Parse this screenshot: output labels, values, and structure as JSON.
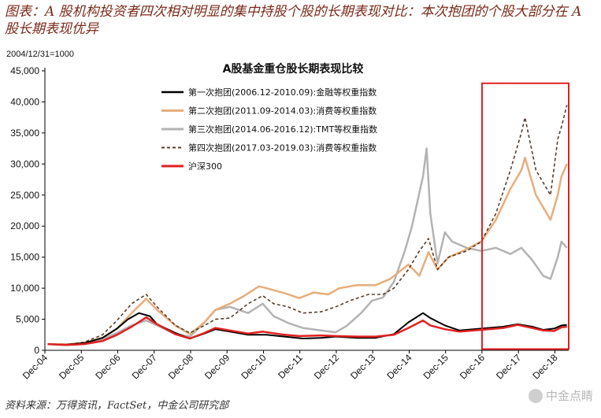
{
  "figure": {
    "title": "图表：A 股机构投资者四次相对明显的集中持股个股的长期表现对比：本次抱团的个股大部分在 A 股长期表现优异",
    "source": "资料来源：万得资讯，FactSet，中金公司研究部",
    "watermark": "中金点睛"
  },
  "chart_data": {
    "type": "line",
    "title": "A股基金重仓股长期表现比较",
    "base_note": "2004/12/31=1000",
    "x_tick_labels": [
      "Dec-04",
      "Dec-05",
      "Dec-06",
      "Dec-07",
      "Dec-08",
      "Dec-09",
      "Dec-10",
      "Dec-11",
      "Dec-12",
      "Dec-13",
      "Dec-14",
      "Dec-15",
      "Dec-16",
      "Dec-17",
      "Dec-18"
    ],
    "y_tick_labels": [
      "0",
      "5,000",
      "10,000",
      "15,000",
      "20,000",
      "25,000",
      "30,000",
      "35,000",
      "40,000",
      "45,000"
    ],
    "ylim": [
      0,
      45000
    ],
    "xlim": [
      2004.92,
      2019.3
    ],
    "grid": false,
    "legend_position": "top-center",
    "highlight_box": {
      "x_range": [
        2016.92,
        2019.3
      ],
      "y_range": [
        200,
        43000
      ],
      "color": "#e02020"
    },
    "series": [
      {
        "name": "第一次抱团(2006.12-2010.09):金融等权重指数",
        "color": "#000000",
        "style": "solid",
        "width": 2,
        "points": [
          [
            2005.0,
            1000
          ],
          [
            2005.5,
            900
          ],
          [
            2006.0,
            1150
          ],
          [
            2006.5,
            2000
          ],
          [
            2006.9,
            3500
          ],
          [
            2007.2,
            5000
          ],
          [
            2007.5,
            6000
          ],
          [
            2007.8,
            5500
          ],
          [
            2008.0,
            4200
          ],
          [
            2008.5,
            2800
          ],
          [
            2008.9,
            1900
          ],
          [
            2009.3,
            2700
          ],
          [
            2009.6,
            3400
          ],
          [
            2010.0,
            3000
          ],
          [
            2010.5,
            2500
          ],
          [
            2011.0,
            2500
          ],
          [
            2011.5,
            2200
          ],
          [
            2012.0,
            1900
          ],
          [
            2012.5,
            2000
          ],
          [
            2012.9,
            2200
          ],
          [
            2013.5,
            2000
          ],
          [
            2014.0,
            2000
          ],
          [
            2014.5,
            2600
          ],
          [
            2014.9,
            4500
          ],
          [
            2015.3,
            6000
          ],
          [
            2015.5,
            5200
          ],
          [
            2015.9,
            4000
          ],
          [
            2016.3,
            3200
          ],
          [
            2016.9,
            3500
          ],
          [
            2017.5,
            3800
          ],
          [
            2017.9,
            4200
          ],
          [
            2018.3,
            3800
          ],
          [
            2018.6,
            3300
          ],
          [
            2018.9,
            3500
          ],
          [
            2019.1,
            4000
          ],
          [
            2019.25,
            4100
          ]
        ]
      },
      {
        "name": "第二次抱团(2011.09-2014.03):消费等权重指数",
        "color": "#e8ad7a",
        "style": "solid",
        "width": 2.5,
        "points": [
          [
            2005.0,
            1000
          ],
          [
            2005.5,
            950
          ],
          [
            2006.0,
            1200
          ],
          [
            2006.5,
            2000
          ],
          [
            2006.9,
            3500
          ],
          [
            2007.3,
            6000
          ],
          [
            2007.7,
            8300
          ],
          [
            2008.0,
            6500
          ],
          [
            2008.5,
            4000
          ],
          [
            2008.9,
            2600
          ],
          [
            2009.3,
            4500
          ],
          [
            2009.6,
            6500
          ],
          [
            2010.0,
            7500
          ],
          [
            2010.4,
            8800
          ],
          [
            2010.8,
            10300
          ],
          [
            2011.0,
            10000
          ],
          [
            2011.5,
            9200
          ],
          [
            2011.9,
            8400
          ],
          [
            2012.3,
            9300
          ],
          [
            2012.7,
            9000
          ],
          [
            2013.0,
            10000
          ],
          [
            2013.5,
            10500
          ],
          [
            2014.0,
            10500
          ],
          [
            2014.4,
            11500
          ],
          [
            2014.9,
            13800
          ],
          [
            2015.2,
            12000
          ],
          [
            2015.45,
            15800
          ],
          [
            2015.7,
            13000
          ],
          [
            2016.0,
            15000
          ],
          [
            2016.4,
            16000
          ],
          [
            2016.9,
            17500
          ],
          [
            2017.3,
            21000
          ],
          [
            2017.7,
            26000
          ],
          [
            2018.0,
            29000
          ],
          [
            2018.1,
            31000
          ],
          [
            2018.4,
            25000
          ],
          [
            2018.8,
            21000
          ],
          [
            2019.0,
            25000
          ],
          [
            2019.1,
            28000
          ],
          [
            2019.25,
            30000
          ]
        ]
      },
      {
        "name": "第三次抱团(2014.06-2016.12):TMT等权重指数",
        "color": "#b3b3b3",
        "style": "solid",
        "width": 2.5,
        "points": [
          [
            2005.0,
            1000
          ],
          [
            2005.5,
            850
          ],
          [
            2006.0,
            1000
          ],
          [
            2006.5,
            1800
          ],
          [
            2006.9,
            2800
          ],
          [
            2007.3,
            4000
          ],
          [
            2007.7,
            4800
          ],
          [
            2008.0,
            4000
          ],
          [
            2008.5,
            2600
          ],
          [
            2008.9,
            2200
          ],
          [
            2009.3,
            4500
          ],
          [
            2009.6,
            6500
          ],
          [
            2010.0,
            7000
          ],
          [
            2010.5,
            6000
          ],
          [
            2010.9,
            7500
          ],
          [
            2011.2,
            5500
          ],
          [
            2011.6,
            4400
          ],
          [
            2012.0,
            3600
          ],
          [
            2012.5,
            3200
          ],
          [
            2012.9,
            2900
          ],
          [
            2013.2,
            3900
          ],
          [
            2013.6,
            6000
          ],
          [
            2013.9,
            8000
          ],
          [
            2014.2,
            8500
          ],
          [
            2014.5,
            11000
          ],
          [
            2014.8,
            16000
          ],
          [
            2015.0,
            20000
          ],
          [
            2015.3,
            28000
          ],
          [
            2015.4,
            32500
          ],
          [
            2015.5,
            22000
          ],
          [
            2015.7,
            14000
          ],
          [
            2015.9,
            19000
          ],
          [
            2016.1,
            17500
          ],
          [
            2016.5,
            16500
          ],
          [
            2016.9,
            16000
          ],
          [
            2017.3,
            16500
          ],
          [
            2017.7,
            15500
          ],
          [
            2018.0,
            16500
          ],
          [
            2018.3,
            14500
          ],
          [
            2018.6,
            12000
          ],
          [
            2018.8,
            11500
          ],
          [
            2019.0,
            15000
          ],
          [
            2019.1,
            17500
          ],
          [
            2019.25,
            16500
          ]
        ]
      },
      {
        "name": "第四次抱团(2017.03-2019.03):消费等权重指数",
        "color": "#5a3d2a",
        "style": "dashed",
        "width": 1.6,
        "points": [
          [
            2005.0,
            1000
          ],
          [
            2005.5,
            900
          ],
          [
            2006.0,
            1300
          ],
          [
            2006.5,
            2500
          ],
          [
            2006.9,
            4800
          ],
          [
            2007.3,
            7500
          ],
          [
            2007.7,
            9000
          ],
          [
            2008.0,
            7000
          ],
          [
            2008.5,
            4000
          ],
          [
            2008.9,
            2800
          ],
          [
            2009.3,
            4000
          ],
          [
            2009.6,
            5000
          ],
          [
            2010.0,
            5200
          ],
          [
            2010.5,
            7500
          ],
          [
            2010.9,
            8800
          ],
          [
            2011.2,
            7500
          ],
          [
            2011.6,
            7000
          ],
          [
            2012.0,
            6000
          ],
          [
            2012.5,
            6200
          ],
          [
            2012.9,
            7000
          ],
          [
            2013.3,
            8000
          ],
          [
            2013.8,
            9000
          ],
          [
            2014.2,
            9000
          ],
          [
            2014.5,
            10000
          ],
          [
            2014.9,
            13000
          ],
          [
            2015.2,
            16000
          ],
          [
            2015.45,
            18000
          ],
          [
            2015.7,
            13000
          ],
          [
            2016.0,
            15000
          ],
          [
            2016.5,
            16000
          ],
          [
            2016.9,
            17500
          ],
          [
            2017.3,
            22000
          ],
          [
            2017.7,
            29000
          ],
          [
            2018.0,
            35000
          ],
          [
            2018.1,
            37500
          ],
          [
            2018.4,
            29000
          ],
          [
            2018.8,
            25000
          ],
          [
            2019.0,
            34000
          ],
          [
            2019.1,
            36000
          ],
          [
            2019.25,
            39500
          ]
        ]
      },
      {
        "name": "沪深300",
        "color": "#e02020",
        "style": "solid",
        "width": 2.5,
        "points": [
          [
            2005.0,
            1000
          ],
          [
            2005.5,
            850
          ],
          [
            2006.0,
            1000
          ],
          [
            2006.5,
            1500
          ],
          [
            2006.9,
            2500
          ],
          [
            2007.3,
            3800
          ],
          [
            2007.7,
            5300
          ],
          [
            2008.0,
            4200
          ],
          [
            2008.5,
            2600
          ],
          [
            2008.9,
            1900
          ],
          [
            2009.3,
            2800
          ],
          [
            2009.6,
            3600
          ],
          [
            2010.0,
            3200
          ],
          [
            2010.5,
            2700
          ],
          [
            2010.9,
            3000
          ],
          [
            2011.5,
            2500
          ],
          [
            2011.9,
            2300
          ],
          [
            2012.5,
            2400
          ],
          [
            2012.9,
            2300
          ],
          [
            2013.5,
            2200
          ],
          [
            2014.0,
            2200
          ],
          [
            2014.5,
            2500
          ],
          [
            2014.9,
            3600
          ],
          [
            2015.3,
            4800
          ],
          [
            2015.5,
            4000
          ],
          [
            2015.9,
            3400
          ],
          [
            2016.3,
            3000
          ],
          [
            2016.9,
            3300
          ],
          [
            2017.5,
            3600
          ],
          [
            2017.9,
            4100
          ],
          [
            2018.3,
            3600
          ],
          [
            2018.6,
            3200
          ],
          [
            2018.9,
            3100
          ],
          [
            2019.1,
            3700
          ],
          [
            2019.25,
            3800
          ]
        ]
      }
    ]
  }
}
